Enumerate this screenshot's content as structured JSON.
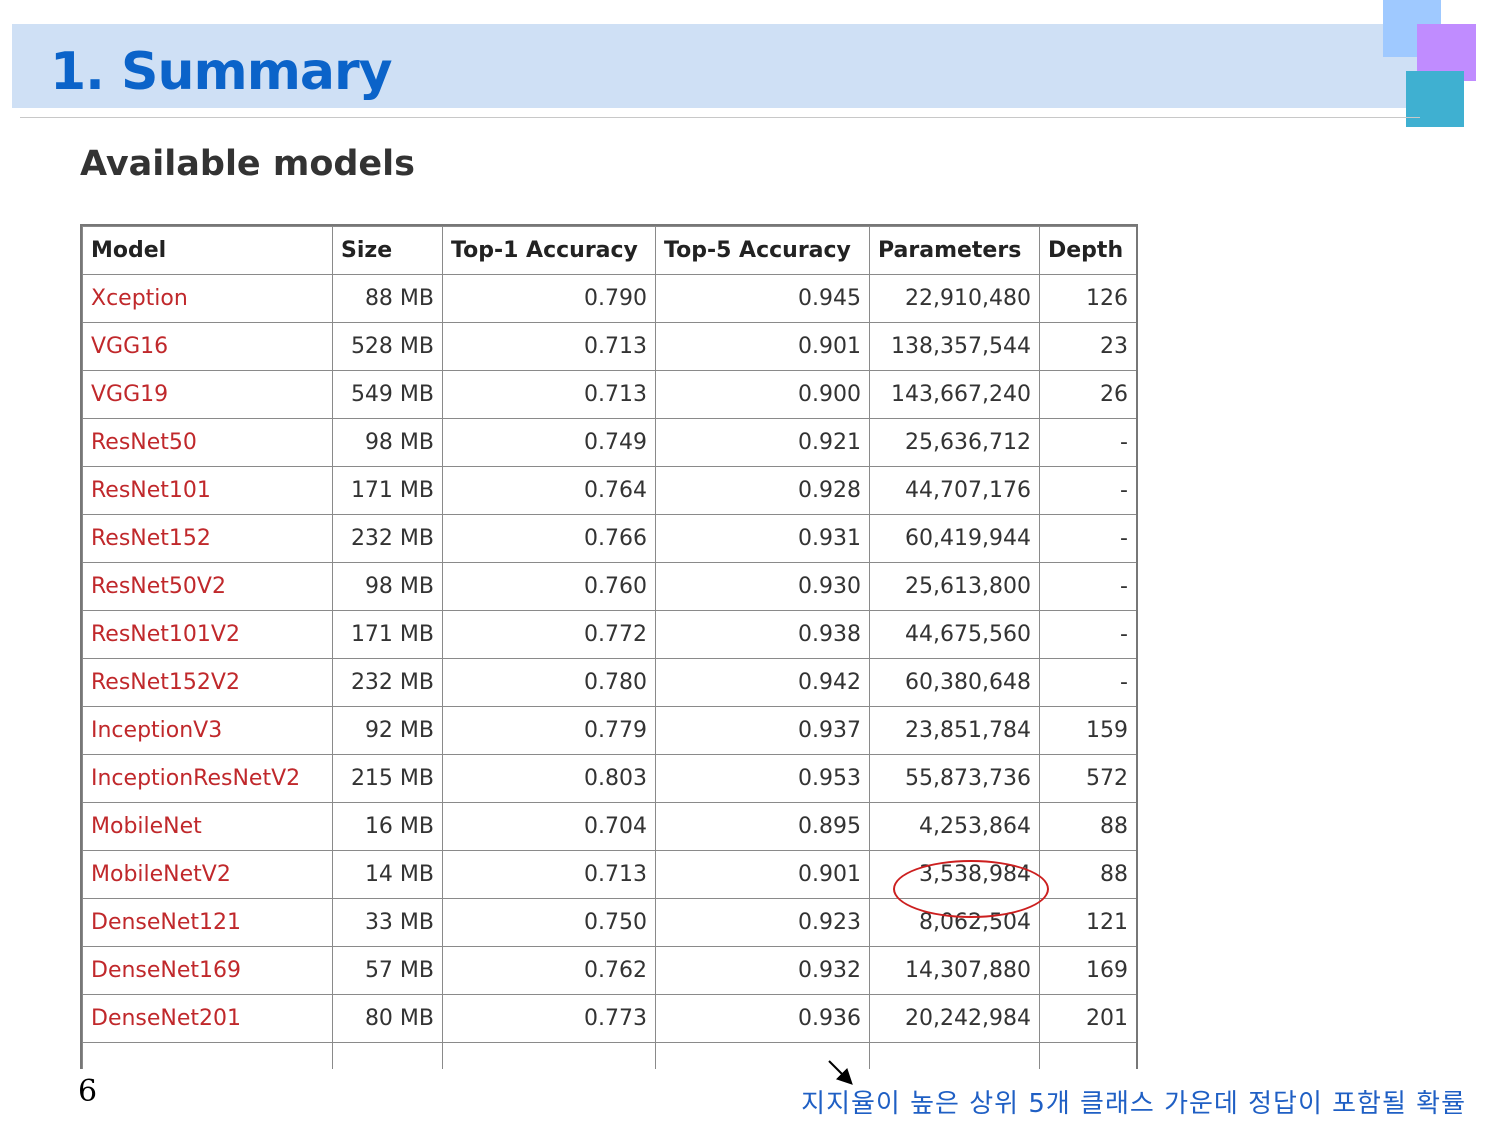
{
  "slide": {
    "title": "1. Summary",
    "subtitle": "Available models",
    "page_number": "6",
    "note": "지지율이 높은 상위 5개 클래스 가운데 정답이 포함될 확률"
  },
  "table": {
    "headers": [
      "Model",
      "Size",
      "Top-1 Accuracy",
      "Top-5 Accuracy",
      "Parameters",
      "Depth"
    ],
    "rows": [
      [
        "Xception",
        "88 MB",
        "0.790",
        "0.945",
        "22,910,480",
        "126"
      ],
      [
        "VGG16",
        "528 MB",
        "0.713",
        "0.901",
        "138,357,544",
        "23"
      ],
      [
        "VGG19",
        "549 MB",
        "0.713",
        "0.900",
        "143,667,240",
        "26"
      ],
      [
        "ResNet50",
        "98 MB",
        "0.749",
        "0.921",
        "25,636,712",
        "-"
      ],
      [
        "ResNet101",
        "171 MB",
        "0.764",
        "0.928",
        "44,707,176",
        "-"
      ],
      [
        "ResNet152",
        "232 MB",
        "0.766",
        "0.931",
        "60,419,944",
        "-"
      ],
      [
        "ResNet50V2",
        "98 MB",
        "0.760",
        "0.930",
        "25,613,800",
        "-"
      ],
      [
        "ResNet101V2",
        "171 MB",
        "0.772",
        "0.938",
        "44,675,560",
        "-"
      ],
      [
        "ResNet152V2",
        "232 MB",
        "0.780",
        "0.942",
        "60,380,648",
        "-"
      ],
      [
        "InceptionV3",
        "92 MB",
        "0.779",
        "0.937",
        "23,851,784",
        "159"
      ],
      [
        "InceptionResNetV2",
        "215 MB",
        "0.803",
        "0.953",
        "55,873,736",
        "572"
      ],
      [
        "MobileNet",
        "16 MB",
        "0.704",
        "0.895",
        "4,253,864",
        "88"
      ],
      [
        "MobileNetV2",
        "14 MB",
        "0.713",
        "0.901",
        "3,538,984",
        "88"
      ],
      [
        "DenseNet121",
        "33 MB",
        "0.750",
        "0.923",
        "8,062,504",
        "121"
      ],
      [
        "DenseNet169",
        "57 MB",
        "0.762",
        "0.932",
        "14,307,880",
        "169"
      ],
      [
        "DenseNet201",
        "80 MB",
        "0.773",
        "0.936",
        "20,242,984",
        "201"
      ],
      [
        "",
        "",
        "",
        "",
        "",
        ""
      ]
    ]
  },
  "colors": {
    "title": "#0b63c9",
    "title_bar": "#cfe0f5",
    "model_link": "#c0282b",
    "highlight_circle": "#cc1f1f",
    "note": "#1f5fc4"
  },
  "icons": [
    "arrow-annotation-icon",
    "highlight-circle"
  ]
}
